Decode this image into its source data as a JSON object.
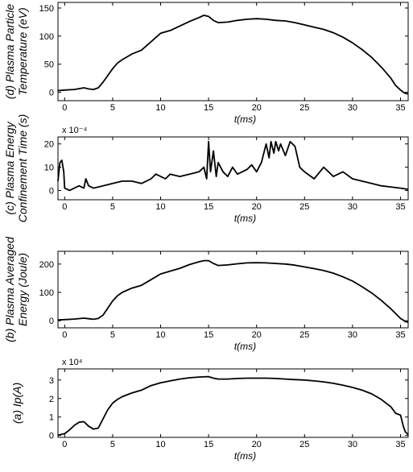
{
  "chart_data": [
    {
      "type": "line",
      "ylabel": [
        "(d) Plasma Particle",
        "Temperature (eV)"
      ],
      "xlabel": "t(ms)",
      "exponent": "",
      "xlim": [
        -0.7,
        35.8
      ],
      "ylim": [
        -15,
        160
      ],
      "xticks": [
        0,
        5,
        10,
        15,
        20,
        25,
        30,
        35
      ],
      "yticks": [
        0,
        50,
        100,
        150
      ],
      "x": [
        -0.7,
        0,
        1,
        2,
        2.5,
        3,
        3.5,
        4,
        4.5,
        5,
        5.5,
        6,
        7,
        8,
        9,
        10,
        11,
        12,
        13,
        14,
        14.5,
        15,
        15.5,
        16,
        17,
        18,
        19,
        20,
        21,
        22,
        23,
        24,
        25,
        26,
        27,
        28,
        29,
        30,
        31,
        32,
        33,
        34,
        34.5,
        35,
        35.3,
        35.5,
        35.8
      ],
      "series": [
        {
          "values": [
            3,
            4,
            5,
            8,
            6,
            5,
            8,
            18,
            30,
            42,
            52,
            58,
            68,
            75,
            90,
            105,
            110,
            118,
            126,
            133,
            137,
            135,
            128,
            124,
            125,
            128,
            130,
            131,
            130,
            128,
            127,
            124,
            120,
            116,
            112,
            106,
            98,
            88,
            76,
            62,
            45,
            25,
            12,
            4,
            0,
            -2,
            -3
          ]
        }
      ]
    },
    {
      "type": "line",
      "ylabel": [
        "(c) Plasma Energy",
        "Confinement Time (s)"
      ],
      "xlabel": "t(ms)",
      "exponent": "x 10⁻⁴",
      "xlim": [
        -0.7,
        35.8
      ],
      "ylim": [
        -4,
        23
      ],
      "xticks": [
        0,
        5,
        10,
        15,
        20,
        25,
        30,
        35
      ],
      "yticks": [
        0,
        10,
        20
      ],
      "x": [
        -0.7,
        -0.5,
        -0.3,
        -0.1,
        0,
        0.5,
        1,
        1.5,
        2,
        2.2,
        2.5,
        3,
        4,
        5,
        6,
        7,
        8,
        9,
        9.5,
        10,
        10.5,
        11,
        12,
        13,
        14,
        14.5,
        14.8,
        15,
        15.2,
        15.5,
        15.8,
        16,
        16.5,
        17,
        17.5,
        18,
        19,
        19.5,
        20,
        20.5,
        21,
        21.3,
        21.5,
        21.8,
        22,
        22.3,
        22.5,
        23,
        23.5,
        24,
        24.5,
        25,
        26,
        27,
        27.5,
        28,
        29,
        30,
        31,
        32,
        33,
        34,
        35,
        35.8
      ],
      "series": [
        {
          "values": [
            4,
            12,
            13,
            8,
            1,
            0,
            1,
            2,
            1,
            5,
            2,
            1,
            2,
            3,
            4,
            4,
            3,
            5,
            7,
            6,
            5,
            7,
            6,
            7,
            8,
            10,
            5,
            21,
            8,
            17,
            6,
            12,
            8,
            6,
            10,
            7,
            9,
            11,
            8,
            12,
            20,
            14,
            21,
            16,
            21,
            17,
            20,
            15,
            21,
            19,
            10,
            8,
            5,
            10,
            8,
            6,
            8,
            5,
            4,
            3,
            2,
            1.5,
            1,
            0.5
          ]
        }
      ]
    },
    {
      "type": "line",
      "ylabel": [
        "(b) Plasma Averaged",
        "Energy (Joule)"
      ],
      "xlabel": "t(ms)",
      "exponent": "",
      "xlim": [
        -0.7,
        35.8
      ],
      "ylim": [
        -25,
        245
      ],
      "xticks": [
        0,
        5,
        10,
        15,
        20,
        25,
        30,
        35
      ],
      "yticks": [
        0,
        100,
        200
      ],
      "x": [
        -0.7,
        0,
        1,
        2,
        2.5,
        3,
        3.5,
        4,
        4.5,
        5,
        5.5,
        6,
        7,
        8,
        9,
        10,
        11,
        12,
        13,
        14,
        14.5,
        15,
        15.5,
        16,
        17,
        18,
        19,
        20,
        21,
        22,
        23,
        24,
        25,
        26,
        27,
        28,
        29,
        30,
        31,
        32,
        33,
        34,
        34.5,
        35,
        35.3,
        35.5,
        35.8
      ],
      "series": [
        {
          "values": [
            3,
            4,
            6,
            9,
            7,
            5,
            8,
            20,
            45,
            70,
            88,
            100,
            115,
            125,
            145,
            165,
            175,
            185,
            198,
            208,
            212,
            212,
            202,
            195,
            197,
            201,
            204,
            205,
            204,
            202,
            200,
            196,
            190,
            184,
            177,
            168,
            155,
            140,
            120,
            98,
            72,
            42,
            25,
            8,
            2,
            -3,
            -5
          ]
        }
      ]
    },
    {
      "type": "line",
      "ylabel": [
        "(a) Ip(A)"
      ],
      "xlabel": "t(ms)",
      "exponent": "x 10⁴",
      "xlim": [
        -0.7,
        35.8
      ],
      "ylim": [
        -0.1,
        3.6
      ],
      "xticks": [
        0,
        5,
        10,
        15,
        20,
        25,
        30,
        35
      ],
      "yticks": [
        0,
        1,
        2,
        3
      ],
      "x": [
        -0.7,
        0,
        0.5,
        1,
        1.5,
        2,
        2.5,
        3,
        3.5,
        4,
        4.5,
        5,
        5.5,
        6,
        7,
        8,
        9,
        10,
        11,
        12,
        13,
        14,
        15,
        15.5,
        16,
        17,
        18,
        19,
        20,
        21,
        22,
        23,
        24,
        25,
        26,
        27,
        28,
        29,
        30,
        31,
        32,
        33,
        34,
        34.5,
        35,
        35.3,
        35.5,
        35.8
      ],
      "series": [
        {
          "values": [
            0.02,
            0.1,
            0.3,
            0.55,
            0.72,
            0.75,
            0.5,
            0.35,
            0.4,
            0.9,
            1.4,
            1.75,
            1.95,
            2.1,
            2.3,
            2.45,
            2.7,
            2.85,
            2.95,
            3.05,
            3.12,
            3.16,
            3.18,
            3.1,
            3.05,
            3.05,
            3.08,
            3.1,
            3.1,
            3.1,
            3.08,
            3.05,
            3.02,
            3.0,
            2.95,
            2.9,
            2.82,
            2.72,
            2.6,
            2.45,
            2.25,
            1.95,
            1.55,
            1.2,
            1.1,
            0.5,
            0.2,
            0.05
          ]
        }
      ]
    }
  ]
}
